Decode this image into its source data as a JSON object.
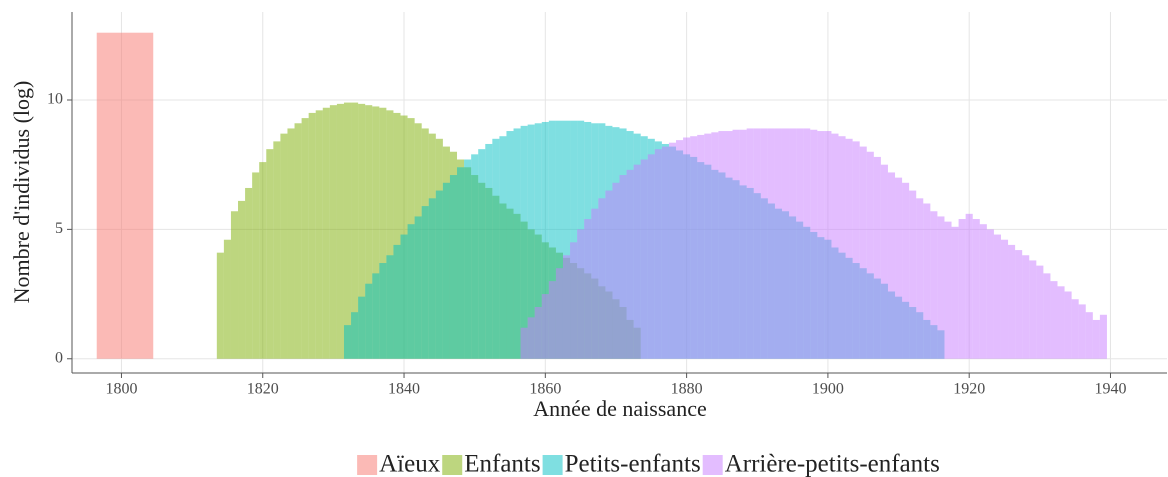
{
  "chart_data": {
    "type": "histogram",
    "xlabel": "Année de naissance",
    "ylabel": "Nombre d'individus (log)",
    "xlim": [
      1793,
      1948
    ],
    "ylim": [
      -0.55,
      13.4
    ],
    "xticks": [
      1800,
      1820,
      1840,
      1860,
      1880,
      1900,
      1920,
      1940
    ],
    "yticks": [
      0,
      5,
      10
    ],
    "grid": true,
    "legend": "bottom",
    "series": [
      {
        "name": "Aïeux",
        "color": "#F8766D",
        "bins": [
          1796.5,
          1804.5
        ],
        "values": [
          12.6
        ]
      },
      {
        "name": "Enfants",
        "color": "#7CAE00",
        "x": [
          1814,
          1815,
          1816,
          1817,
          1818,
          1819,
          1820,
          1821,
          1822,
          1823,
          1824,
          1825,
          1826,
          1827,
          1828,
          1829,
          1830,
          1831,
          1832,
          1833,
          1834,
          1835,
          1836,
          1837,
          1838,
          1839,
          1840,
          1841,
          1842,
          1843,
          1844,
          1845,
          1846,
          1847,
          1848,
          1849,
          1850,
          1851,
          1852,
          1853,
          1854,
          1855,
          1856,
          1857,
          1858,
          1859,
          1860,
          1861,
          1862,
          1863,
          1864,
          1865,
          1866,
          1867,
          1868,
          1869,
          1870,
          1871,
          1872,
          1873
        ],
        "values": [
          4.1,
          4.6,
          5.7,
          6.1,
          6.6,
          7.2,
          7.6,
          8.1,
          8.4,
          8.7,
          8.9,
          9.1,
          9.3,
          9.5,
          9.6,
          9.7,
          9.8,
          9.85,
          9.9,
          9.9,
          9.85,
          9.8,
          9.75,
          9.7,
          9.6,
          9.5,
          9.4,
          9.3,
          9.1,
          8.9,
          8.7,
          8.5,
          8.2,
          8.0,
          7.7,
          7.4,
          7.1,
          6.8,
          6.6,
          6.3,
          6.0,
          5.8,
          5.6,
          5.3,
          5.0,
          4.8,
          4.5,
          4.3,
          4.1,
          3.9,
          3.7,
          3.5,
          3.3,
          3.1,
          2.8,
          2.6,
          2.3,
          2.0,
          1.5,
          1.2
        ]
      },
      {
        "name": "Petits-enfants",
        "color": "#00BFC4",
        "x": [
          1832,
          1833,
          1834,
          1835,
          1836,
          1837,
          1838,
          1839,
          1840,
          1841,
          1842,
          1843,
          1844,
          1845,
          1846,
          1847,
          1848,
          1849,
          1850,
          1851,
          1852,
          1853,
          1854,
          1855,
          1856,
          1857,
          1858,
          1859,
          1860,
          1861,
          1862,
          1863,
          1864,
          1865,
          1866,
          1867,
          1868,
          1869,
          1870,
          1871,
          1872,
          1873,
          1874,
          1875,
          1876,
          1877,
          1878,
          1879,
          1880,
          1881,
          1882,
          1883,
          1884,
          1885,
          1886,
          1887,
          1888,
          1889,
          1890,
          1891,
          1892,
          1893,
          1894,
          1895,
          1896,
          1897,
          1898,
          1899,
          1900,
          1901,
          1902,
          1903,
          1904,
          1905,
          1906,
          1907,
          1908,
          1909,
          1910,
          1911,
          1912,
          1913,
          1914,
          1915,
          1916
        ],
        "values": [
          1.3,
          1.8,
          2.4,
          2.9,
          3.3,
          3.7,
          4.0,
          4.4,
          4.8,
          5.2,
          5.5,
          5.9,
          6.2,
          6.5,
          6.8,
          7.1,
          7.4,
          7.7,
          7.9,
          8.1,
          8.3,
          8.5,
          8.6,
          8.8,
          8.9,
          9.0,
          9.05,
          9.1,
          9.15,
          9.2,
          9.2,
          9.2,
          9.2,
          9.2,
          9.15,
          9.1,
          9.1,
          9.0,
          8.95,
          8.9,
          8.8,
          8.7,
          8.6,
          8.5,
          8.4,
          8.3,
          8.2,
          8.05,
          7.9,
          7.8,
          7.6,
          7.5,
          7.3,
          7.2,
          7.0,
          6.9,
          6.7,
          6.6,
          6.4,
          6.2,
          6.0,
          5.8,
          5.7,
          5.5,
          5.3,
          5.1,
          4.9,
          4.7,
          4.6,
          4.3,
          4.1,
          3.9,
          3.7,
          3.5,
          3.3,
          3.1,
          2.9,
          2.6,
          2.4,
          2.2,
          2.0,
          1.8,
          1.5,
          1.3,
          1.1
        ]
      },
      {
        "name": "Arrière-petits-enfants",
        "color": "#C77CFF",
        "x": [
          1857,
          1858,
          1859,
          1860,
          1861,
          1862,
          1863,
          1864,
          1865,
          1866,
          1867,
          1868,
          1869,
          1870,
          1871,
          1872,
          1873,
          1874,
          1875,
          1876,
          1877,
          1878,
          1879,
          1880,
          1881,
          1882,
          1883,
          1884,
          1885,
          1886,
          1887,
          1888,
          1889,
          1890,
          1891,
          1892,
          1893,
          1894,
          1895,
          1896,
          1897,
          1898,
          1899,
          1900,
          1901,
          1902,
          1903,
          1904,
          1905,
          1906,
          1907,
          1908,
          1909,
          1910,
          1911,
          1912,
          1913,
          1914,
          1915,
          1916,
          1917,
          1918,
          1919,
          1920,
          1921,
          1922,
          1923,
          1924,
          1925,
          1926,
          1927,
          1928,
          1929,
          1930,
          1931,
          1932,
          1933,
          1934,
          1935,
          1936,
          1937,
          1938,
          1939
        ],
        "values": [
          1.2,
          1.6,
          2.0,
          2.5,
          3.0,
          3.5,
          4.0,
          4.5,
          5.0,
          5.4,
          5.8,
          6.2,
          6.5,
          6.8,
          7.1,
          7.3,
          7.5,
          7.7,
          7.9,
          8.1,
          8.2,
          8.35,
          8.45,
          8.55,
          8.6,
          8.65,
          8.7,
          8.75,
          8.8,
          8.8,
          8.85,
          8.85,
          8.9,
          8.9,
          8.9,
          8.9,
          8.9,
          8.9,
          8.9,
          8.9,
          8.9,
          8.85,
          8.8,
          8.8,
          8.7,
          8.6,
          8.5,
          8.4,
          8.2,
          8.0,
          7.8,
          7.5,
          7.2,
          7.0,
          6.8,
          6.5,
          6.2,
          6.0,
          5.7,
          5.5,
          5.3,
          5.1,
          5.4,
          5.6,
          5.4,
          5.2,
          5.0,
          4.8,
          4.6,
          4.4,
          4.2,
          4.0,
          3.8,
          3.6,
          3.3,
          3.0,
          2.8,
          2.6,
          2.3,
          2.1,
          1.8,
          1.5,
          1.7
        ]
      }
    ]
  }
}
